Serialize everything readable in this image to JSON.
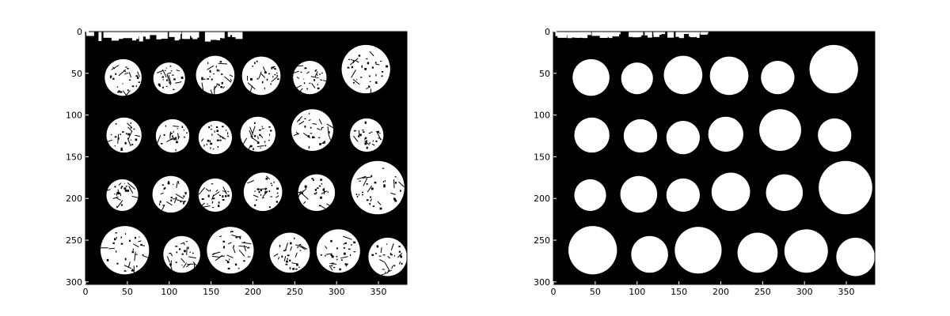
{
  "panels": [
    {
      "name": "left-panel",
      "variant": "noisy",
      "xticks": [
        "0",
        "50",
        "100",
        "150",
        "200",
        "250",
        "300",
        "350"
      ],
      "yticks": [
        "0",
        "50",
        "100",
        "150",
        "200",
        "250",
        "300"
      ]
    },
    {
      "name": "right-panel",
      "variant": "clean",
      "xticks": [
        "0",
        "50",
        "100",
        "150",
        "200",
        "250",
        "300",
        "350"
      ],
      "yticks": [
        "0",
        "50",
        "100",
        "150",
        "200",
        "250",
        "300"
      ]
    }
  ],
  "coins": [
    {
      "row": 1,
      "col": 1,
      "cx": 45,
      "cy": 55,
      "r": 22
    },
    {
      "row": 1,
      "col": 2,
      "cx": 100,
      "cy": 56,
      "r": 19
    },
    {
      "row": 1,
      "col": 3,
      "cx": 155,
      "cy": 52,
      "r": 23
    },
    {
      "row": 1,
      "col": 4,
      "cx": 210,
      "cy": 53,
      "r": 23
    },
    {
      "row": 1,
      "col": 5,
      "cx": 268,
      "cy": 55,
      "r": 20
    },
    {
      "row": 1,
      "col": 6,
      "cx": 335,
      "cy": 45,
      "r": 29
    },
    {
      "row": 2,
      "col": 1,
      "cx": 46,
      "cy": 124,
      "r": 21
    },
    {
      "row": 2,
      "col": 2,
      "cx": 104,
      "cy": 125,
      "r": 20
    },
    {
      "row": 2,
      "col": 3,
      "cx": 155,
      "cy": 127,
      "r": 20
    },
    {
      "row": 2,
      "col": 4,
      "cx": 206,
      "cy": 123,
      "r": 21
    },
    {
      "row": 2,
      "col": 5,
      "cx": 271,
      "cy": 118,
      "r": 25
    },
    {
      "row": 2,
      "col": 6,
      "cx": 336,
      "cy": 124,
      "r": 20
    },
    {
      "row": 3,
      "col": 1,
      "cx": 44,
      "cy": 196,
      "r": 19
    },
    {
      "row": 3,
      "col": 2,
      "cx": 102,
      "cy": 195,
      "r": 22
    },
    {
      "row": 3,
      "col": 3,
      "cx": 155,
      "cy": 196,
      "r": 20
    },
    {
      "row": 3,
      "col": 4,
      "cx": 212,
      "cy": 192,
      "r": 23
    },
    {
      "row": 3,
      "col": 5,
      "cx": 276,
      "cy": 193,
      "r": 22
    },
    {
      "row": 3,
      "col": 6,
      "cx": 349,
      "cy": 187,
      "r": 32
    },
    {
      "row": 4,
      "col": 1,
      "cx": 47,
      "cy": 262,
      "r": 29
    },
    {
      "row": 4,
      "col": 2,
      "cx": 115,
      "cy": 267,
      "r": 22
    },
    {
      "row": 4,
      "col": 3,
      "cx": 173,
      "cy": 262,
      "r": 28
    },
    {
      "row": 4,
      "col": 4,
      "cx": 244,
      "cy": 265,
      "r": 24
    },
    {
      "row": 4,
      "col": 5,
      "cx": 302,
      "cy": 263,
      "r": 26
    },
    {
      "row": 4,
      "col": 6,
      "cx": 361,
      "cy": 270,
      "r": 23
    }
  ],
  "colors": {
    "background": "#000000",
    "foreground": "#ffffff"
  }
}
